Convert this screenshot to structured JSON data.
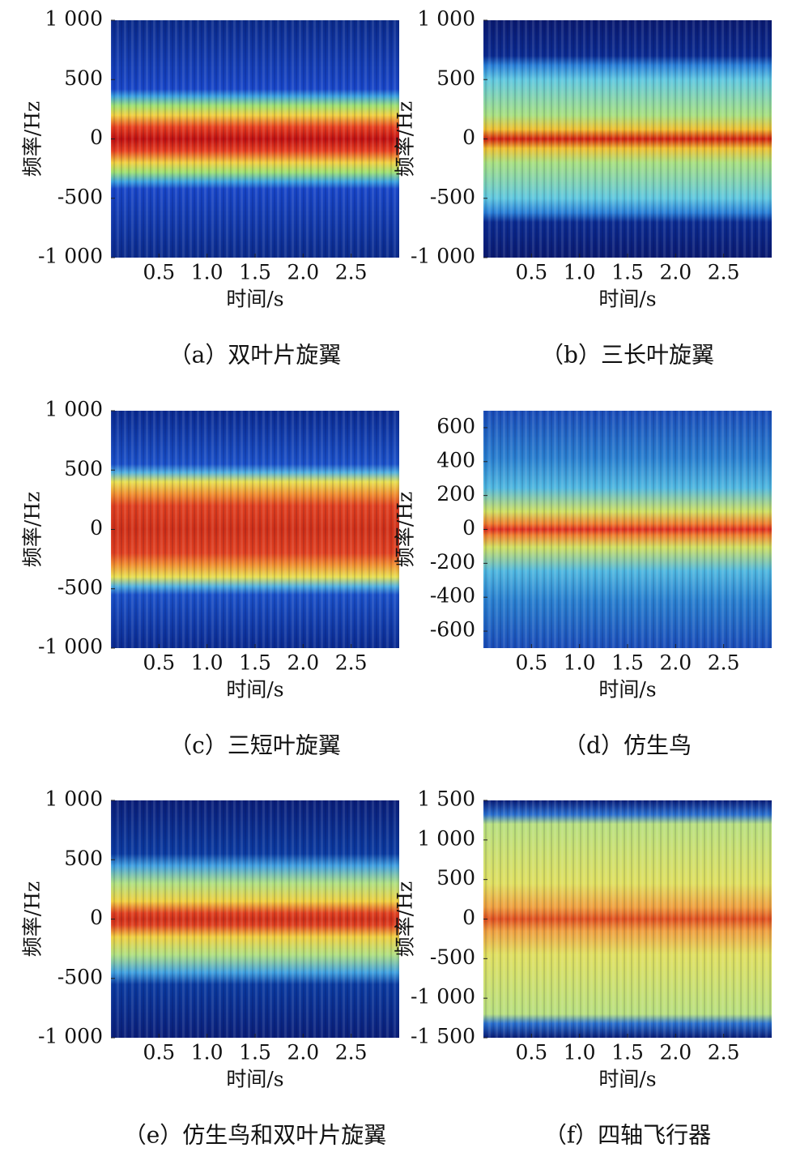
{
  "chart_data": [
    {
      "type": "spectrogram",
      "xlabel": "时间/s",
      "ylabel": "频率/Hz",
      "caption": "（a）双叶片旋翼",
      "xlim": [
        0,
        3
      ],
      "xticks": [
        0.5,
        {
          "value": 1,
          "label": "1.0"
        },
        1.5,
        {
          "value": 2,
          "label": "2.0"
        },
        2.5
      ],
      "ylim": [
        -1000,
        1000
      ],
      "yticks": [
        {
          "value": 1000,
          "label": "1 000"
        },
        500,
        0,
        -500,
        {
          "value": -1000,
          "label": "-1 000"
        }
      ]
    },
    {
      "type": "spectrogram",
      "xlabel": "时间/s",
      "ylabel": "频率/Hz",
      "caption": "（b）三长叶旋翼",
      "xlim": [
        0,
        3
      ],
      "xticks": [
        0.5,
        {
          "value": 1,
          "label": "1.0"
        },
        1.5,
        {
          "value": 2,
          "label": "2.0"
        },
        2.5
      ],
      "ylim": [
        -1000,
        1000
      ],
      "yticks": [
        {
          "value": 1000,
          "label": "1 000"
        },
        500,
        0,
        -500,
        {
          "value": -1000,
          "label": "-1 000"
        }
      ]
    },
    {
      "type": "spectrogram",
      "xlabel": "时间/s",
      "ylabel": "频率/Hz",
      "caption": "（c）三短叶旋翼",
      "xlim": [
        0,
        3
      ],
      "xticks": [
        0.5,
        {
          "value": 1,
          "label": "1.0"
        },
        1.5,
        {
          "value": 2,
          "label": "2.0"
        },
        2.5
      ],
      "ylim": [
        -1000,
        1000
      ],
      "yticks": [
        {
          "value": 1000,
          "label": "1 000"
        },
        500,
        0,
        -500,
        {
          "value": -1000,
          "label": "-1 000"
        }
      ]
    },
    {
      "type": "spectrogram",
      "xlabel": "时间/s",
      "ylabel": "频率/Hz",
      "caption": "（d）仿生鸟",
      "xlim": [
        0,
        3
      ],
      "xticks": [
        0.5,
        {
          "value": 1,
          "label": "1.0"
        },
        1.5,
        {
          "value": 2,
          "label": "2.0"
        },
        2.5
      ],
      "ylim": [
        -700,
        700
      ],
      "yticks": [
        600,
        400,
        200,
        0,
        -200,
        -400,
        -600
      ]
    },
    {
      "type": "spectrogram",
      "xlabel": "时间/s",
      "ylabel": "频率/Hz",
      "caption": "（e）仿生鸟和双叶片旋翼",
      "xlim": [
        0,
        3
      ],
      "xticks": [
        0.5,
        {
          "value": 1,
          "label": "1.0"
        },
        1.5,
        {
          "value": 2,
          "label": "2.0"
        },
        2.5
      ],
      "ylim": [
        -1000,
        1000
      ],
      "yticks": [
        {
          "value": 1000,
          "label": "1 000"
        },
        500,
        0,
        -500,
        {
          "value": -1000,
          "label": "-1 000"
        }
      ]
    },
    {
      "type": "spectrogram",
      "xlabel": "时间/s",
      "ylabel": "频率/Hz",
      "caption": "（f）四轴飞行器",
      "xlim": [
        0,
        3
      ],
      "xticks": [
        0.5,
        {
          "value": 1,
          "label": "1.0"
        },
        1.5,
        {
          "value": 2,
          "label": "2.0"
        },
        2.5
      ],
      "ylim": [
        -1500,
        1500
      ],
      "yticks": [
        {
          "value": 1500,
          "label": "1 500"
        },
        {
          "value": 1000,
          "label": "1 000"
        },
        500,
        0,
        -500,
        {
          "value": -1000,
          "label": "-1 000"
        },
        {
          "value": -1500,
          "label": "-1 500"
        }
      ]
    }
  ]
}
